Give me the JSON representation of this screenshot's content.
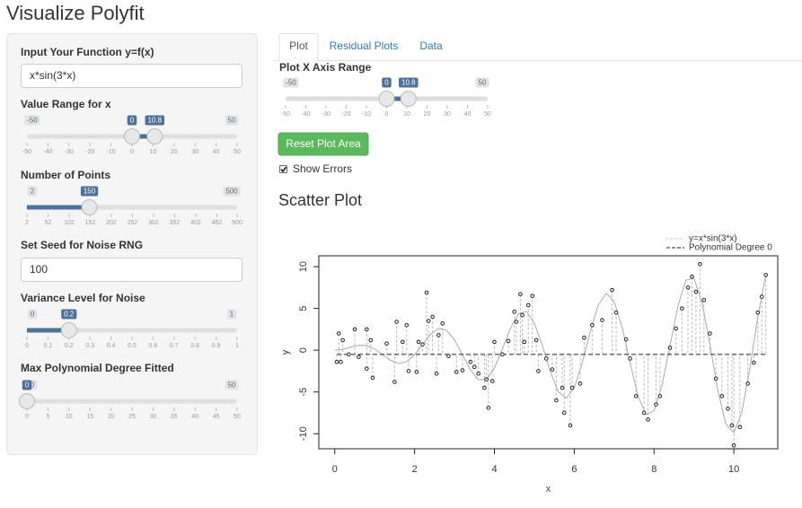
{
  "header": {
    "title": "Visualize Polyfit"
  },
  "sidebar": {
    "function": {
      "label": "Input Your Function y=f(x)",
      "value": "x*sin(3*x)"
    },
    "range": {
      "label": "Value Range for x",
      "min": -50,
      "max": 50,
      "from": 0,
      "to": 10.8,
      "ticks": [
        -50,
        -40,
        -30,
        -20,
        -10,
        0,
        10,
        20,
        30,
        40,
        50
      ]
    },
    "points": {
      "label": "Number of Points",
      "min": 2,
      "max": 500,
      "value": 150,
      "ticks": [
        2,
        52,
        102,
        152,
        202,
        252,
        302,
        352,
        402,
        452,
        500
      ]
    },
    "seed": {
      "label": "Set Seed for Noise RNG",
      "value": "100"
    },
    "variance": {
      "label": "Variance Level for Noise",
      "min": 0,
      "max": 1,
      "value": 0.2,
      "ticks": [
        0,
        0.1,
        0.2,
        0.3,
        0.4,
        0.5,
        0.6,
        0.7,
        0.8,
        0.9,
        1
      ]
    },
    "degree": {
      "label": "Max Polynomial Degree Fitted",
      "min": 0,
      "max": 50,
      "value": 0,
      "ticks": [
        0,
        5,
        10,
        15,
        20,
        25,
        30,
        35,
        40,
        45,
        50
      ]
    }
  },
  "tabs": [
    "Plot",
    "Residual Plots",
    "Data"
  ],
  "plot_range": {
    "label": "Plot X Axis Range",
    "min": -50,
    "max": 50,
    "from": 0,
    "to": 10.8,
    "ticks": [
      -50,
      -40,
      -30,
      -20,
      -10,
      0,
      10,
      20,
      30,
      40,
      50
    ]
  },
  "reset_button": "Reset Plot Area",
  "show_errors": {
    "label": "Show Errors",
    "checked": true
  },
  "section_title": "Scatter Plot",
  "chart_data": {
    "type": "scatter",
    "xlabel": "x",
    "ylabel": "y",
    "xlim": [
      -0.4,
      11.1
    ],
    "ylim": [
      -11.8,
      11.3
    ],
    "xticks": [
      0,
      2,
      4,
      6,
      8,
      10
    ],
    "yticks": [
      -10,
      -5,
      0,
      5,
      10
    ],
    "x": [
      0.05,
      0.1,
      0.15,
      0.2,
      0.35,
      0.5,
      0.6,
      0.8,
      0.8,
      0.9,
      0.95,
      1.3,
      1.5,
      1.55,
      1.7,
      1.8,
      1.85,
      2.05,
      2.1,
      2.2,
      2.3,
      2.35,
      2.45,
      2.55,
      2.6,
      2.7,
      2.85,
      3.05,
      3.2,
      3.4,
      3.5,
      3.6,
      3.75,
      3.8,
      3.85,
      3.95,
      4.0,
      4.2,
      4.35,
      4.5,
      4.55,
      4.65,
      4.7,
      4.75,
      4.85,
      4.95,
      5.05,
      5.1,
      5.3,
      5.45,
      5.55,
      5.7,
      5.75,
      5.9,
      5.95,
      6.15,
      6.25,
      6.45,
      6.7,
      6.95,
      7.05,
      7.3,
      7.4,
      7.55,
      7.75,
      7.85,
      8.05,
      8.15,
      8.4,
      8.55,
      8.7,
      8.85,
      8.95,
      9.05,
      9.15,
      9.25,
      9.4,
      9.55,
      9.7,
      9.85,
      9.95,
      10.0,
      10.15,
      10.35,
      10.5,
      10.6,
      10.7,
      10.8
    ],
    "values": [
      -1.4,
      2.0,
      -1.4,
      1.2,
      -0.5,
      2.5,
      -0.8,
      2.5,
      -2.2,
      1.2,
      -3.3,
      0.8,
      -3.8,
      3.4,
      1.0,
      3.0,
      -2.5,
      -2.6,
      1.0,
      0.7,
      6.9,
      3.5,
      4.0,
      -2.8,
      1.8,
      3.2,
      -0.7,
      -2.6,
      -2.4,
      -1.4,
      -2.0,
      -2.8,
      -4.5,
      -3.5,
      -6.9,
      -3.7,
      1.0,
      -0.5,
      1.1,
      4.6,
      3.4,
      6.7,
      4.2,
      1.0,
      5.4,
      6.5,
      1.2,
      -2.5,
      -1.0,
      -2.3,
      -6.0,
      -4.5,
      -7.5,
      -9.0,
      -4.5,
      -4.0,
      1.5,
      3.0,
      3.6,
      7.2,
      4.5,
      1.3,
      -1.0,
      -5.5,
      -7.5,
      -8.3,
      -6.5,
      -5.5,
      0.3,
      2.6,
      5.0,
      7.5,
      8.8,
      7.0,
      10.3,
      6.0,
      2.0,
      -3.4,
      -5.5,
      -7.0,
      -9.0,
      -11.4,
      -9.2,
      -4.0,
      -1.5,
      4.5,
      6.4,
      9.0
    ],
    "color": "#222222",
    "curve": {
      "name": "y=x*sin(3*x)",
      "color": "#aaaaaa",
      "x": [
        0,
        0.2,
        0.4,
        0.6,
        0.8,
        1.0,
        1.2,
        1.4,
        1.6,
        1.8,
        2.0,
        2.2,
        2.4,
        2.6,
        2.8,
        3.0,
        3.2,
        3.4,
        3.6,
        3.8,
        4.0,
        4.2,
        4.4,
        4.6,
        4.8,
        5.0,
        5.2,
        5.4,
        5.6,
        5.8,
        6.0,
        6.2,
        6.4,
        6.6,
        6.8,
        7.0,
        7.2,
        7.4,
        7.6,
        7.8,
        8.0,
        8.2,
        8.4,
        8.6,
        8.8,
        9.0,
        9.2,
        9.4,
        9.6,
        9.8,
        10.0,
        10.2,
        10.4,
        10.6,
        10.8
      ],
      "values": [
        0,
        0.113,
        0.373,
        0.584,
        0.54,
        0.141,
        -0.531,
        -1.22,
        -1.594,
        -1.391,
        -0.559,
        0.685,
        1.905,
        2.596,
        2.393,
        1.236,
        -0.558,
        -2.38,
        -3.534,
        -3.493,
        -2.146,
        0.141,
        2.605,
        4.341,
        4.635,
        3.251,
        0.562,
        -2.551,
        -4.957,
        -5.745,
        -4.506,
        -1.531,
        2.197,
        5.368,
        6.799,
        5.857,
        2.755,
        -1.528,
        -5.526,
        -7.7,
        -7.25,
        -4.221,
        0.529,
        5.311,
        8.39,
        8.6,
        5.75,
        0.7,
        -4.82,
        -8.85,
        -9.88,
        -7.43,
        -2.23,
        3.97,
        9.0
      ]
    },
    "fit": {
      "name": "Polynomial Degree 0",
      "color": "#222222",
      "value": -0.5
    },
    "residual_color": "#bbbbbb"
  }
}
